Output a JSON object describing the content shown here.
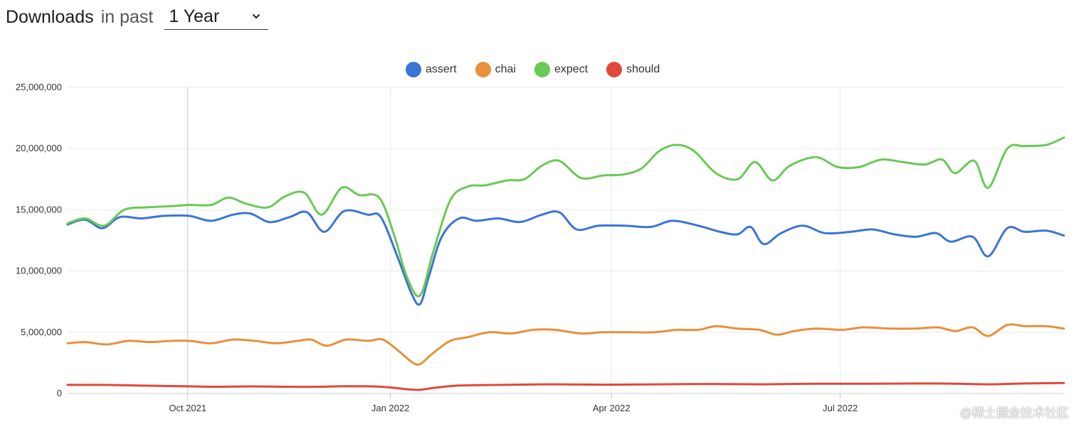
{
  "header": {
    "title_strong": "Downloads",
    "title_light": "in past",
    "period_select": {
      "value": "1 Year"
    }
  },
  "legend": [
    {
      "name": "assert",
      "color": "#3a75d5"
    },
    {
      "name": "chai",
      "color": "#e8903a"
    },
    {
      "name": "expect",
      "color": "#69c955"
    },
    {
      "name": "should",
      "color": "#e0483a"
    }
  ],
  "watermark": "@稀土掘金技术社区",
  "chart_data": {
    "type": "line",
    "title": "Downloads in past 1 Year",
    "xlabel": "",
    "ylabel": "",
    "x_range": [
      "Aug 2021",
      "Aug 2022"
    ],
    "x_ticks": [
      {
        "label": "Oct 2021",
        "t": 0.138
      },
      {
        "label": "Jan 2022",
        "t": 0.371
      },
      {
        "label": "Apr 2022",
        "t": 0.625
      },
      {
        "label": "Jul 2022",
        "t": 0.888
      }
    ],
    "ylim": [
      0,
      25000000
    ],
    "y_ticks": [
      {
        "label": "0",
        "value": 0
      },
      {
        "label": "5,000,000",
        "value": 5000000
      },
      {
        "label": "10,000,000",
        "value": 10000000
      },
      {
        "label": "15,000,000",
        "value": 15000000
      },
      {
        "label": "20,000,000",
        "value": 20000000
      },
      {
        "label": "25,000,000",
        "value": 25000000
      }
    ],
    "grid": true,
    "legend_position": "top-center",
    "series": [
      {
        "name": "assert",
        "color": "#3a75d5",
        "points": [
          [
            0.0,
            13.8
          ],
          [
            0.02,
            14.2
          ],
          [
            0.04,
            13.5
          ],
          [
            0.06,
            14.4
          ],
          [
            0.085,
            14.3
          ],
          [
            0.11,
            14.5
          ],
          [
            0.14,
            14.5
          ],
          [
            0.165,
            14.1
          ],
          [
            0.19,
            14.6
          ],
          [
            0.21,
            14.7
          ],
          [
            0.232,
            14.0
          ],
          [
            0.255,
            14.4
          ],
          [
            0.275,
            14.8
          ],
          [
            0.295,
            13.2
          ],
          [
            0.318,
            14.9
          ],
          [
            0.345,
            14.6
          ],
          [
            0.36,
            14.4
          ],
          [
            0.38,
            11.0
          ],
          [
            0.395,
            8.2
          ],
          [
            0.405,
            7.3
          ],
          [
            0.415,
            9.5
          ],
          [
            0.43,
            12.8
          ],
          [
            0.45,
            14.3
          ],
          [
            0.47,
            14.1
          ],
          [
            0.495,
            14.3
          ],
          [
            0.52,
            14.0
          ],
          [
            0.545,
            14.6
          ],
          [
            0.565,
            14.8
          ],
          [
            0.585,
            13.4
          ],
          [
            0.61,
            13.7
          ],
          [
            0.64,
            13.7
          ],
          [
            0.67,
            13.6
          ],
          [
            0.695,
            14.1
          ],
          [
            0.725,
            13.7
          ],
          [
            0.75,
            13.2
          ],
          [
            0.77,
            13.0
          ],
          [
            0.785,
            13.6
          ],
          [
            0.8,
            12.2
          ],
          [
            0.82,
            13.1
          ],
          [
            0.845,
            13.7
          ],
          [
            0.87,
            13.1
          ],
          [
            0.9,
            13.2
          ],
          [
            0.925,
            13.4
          ],
          [
            0.95,
            13.0
          ],
          [
            0.975,
            12.8
          ],
          [
            0.998,
            13.1
          ],
          [
            1.015,
            12.4
          ],
          [
            1.04,
            12.8
          ],
          [
            1.058,
            11.2
          ],
          [
            1.08,
            13.5
          ],
          [
            1.1,
            13.2
          ],
          [
            1.125,
            13.3
          ],
          [
            1.145,
            12.9
          ]
        ]
      },
      {
        "name": "chai",
        "color": "#e8903a",
        "points": [
          [
            0.0,
            4.1
          ],
          [
            0.02,
            4.2
          ],
          [
            0.045,
            4.0
          ],
          [
            0.07,
            4.3
          ],
          [
            0.095,
            4.2
          ],
          [
            0.12,
            4.3
          ],
          [
            0.14,
            4.3
          ],
          [
            0.165,
            4.1
          ],
          [
            0.19,
            4.4
          ],
          [
            0.215,
            4.3
          ],
          [
            0.24,
            4.1
          ],
          [
            0.265,
            4.3
          ],
          [
            0.28,
            4.4
          ],
          [
            0.298,
            3.9
          ],
          [
            0.32,
            4.4
          ],
          [
            0.345,
            4.3
          ],
          [
            0.362,
            4.4
          ],
          [
            0.38,
            3.5
          ],
          [
            0.395,
            2.6
          ],
          [
            0.405,
            2.4
          ],
          [
            0.42,
            3.3
          ],
          [
            0.44,
            4.3
          ],
          [
            0.46,
            4.6
          ],
          [
            0.485,
            5.0
          ],
          [
            0.51,
            4.9
          ],
          [
            0.535,
            5.2
          ],
          [
            0.56,
            5.2
          ],
          [
            0.59,
            4.9
          ],
          [
            0.615,
            5.0
          ],
          [
            0.645,
            5.0
          ],
          [
            0.675,
            5.0
          ],
          [
            0.7,
            5.2
          ],
          [
            0.725,
            5.2
          ],
          [
            0.745,
            5.5
          ],
          [
            0.77,
            5.3
          ],
          [
            0.795,
            5.2
          ],
          [
            0.815,
            4.8
          ],
          [
            0.835,
            5.1
          ],
          [
            0.86,
            5.3
          ],
          [
            0.89,
            5.2
          ],
          [
            0.915,
            5.4
          ],
          [
            0.945,
            5.3
          ],
          [
            0.975,
            5.3
          ],
          [
            1.0,
            5.4
          ],
          [
            1.02,
            5.1
          ],
          [
            1.04,
            5.4
          ],
          [
            1.058,
            4.7
          ],
          [
            1.08,
            5.6
          ],
          [
            1.1,
            5.5
          ],
          [
            1.125,
            5.5
          ],
          [
            1.145,
            5.3
          ]
        ]
      },
      {
        "name": "expect",
        "color": "#69c955",
        "points": [
          [
            0.0,
            13.9
          ],
          [
            0.02,
            14.3
          ],
          [
            0.042,
            13.7
          ],
          [
            0.065,
            15.0
          ],
          [
            0.09,
            15.2
          ],
          [
            0.12,
            15.3
          ],
          [
            0.14,
            15.4
          ],
          [
            0.165,
            15.4
          ],
          [
            0.185,
            16.0
          ],
          [
            0.205,
            15.5
          ],
          [
            0.23,
            15.2
          ],
          [
            0.25,
            16.1
          ],
          [
            0.272,
            16.4
          ],
          [
            0.292,
            14.6
          ],
          [
            0.315,
            16.8
          ],
          [
            0.335,
            16.2
          ],
          [
            0.358,
            16.0
          ],
          [
            0.375,
            13.0
          ],
          [
            0.39,
            9.5
          ],
          [
            0.405,
            8.0
          ],
          [
            0.42,
            11.5
          ],
          [
            0.44,
            15.8
          ],
          [
            0.46,
            16.9
          ],
          [
            0.48,
            17.0
          ],
          [
            0.505,
            17.4
          ],
          [
            0.525,
            17.5
          ],
          [
            0.545,
            18.6
          ],
          [
            0.565,
            19.0
          ],
          [
            0.59,
            17.6
          ],
          [
            0.615,
            17.8
          ],
          [
            0.64,
            17.9
          ],
          [
            0.66,
            18.4
          ],
          [
            0.68,
            19.8
          ],
          [
            0.7,
            20.3
          ],
          [
            0.72,
            19.8
          ],
          [
            0.745,
            18.0
          ],
          [
            0.77,
            17.5
          ],
          [
            0.79,
            18.9
          ],
          [
            0.81,
            17.4
          ],
          [
            0.83,
            18.6
          ],
          [
            0.86,
            19.3
          ],
          [
            0.885,
            18.5
          ],
          [
            0.91,
            18.5
          ],
          [
            0.935,
            19.1
          ],
          [
            0.96,
            18.9
          ],
          [
            0.985,
            18.7
          ],
          [
            1.005,
            19.1
          ],
          [
            1.02,
            18.0
          ],
          [
            1.042,
            19.0
          ],
          [
            1.058,
            16.8
          ],
          [
            1.08,
            20.0
          ],
          [
            1.1,
            20.2
          ],
          [
            1.125,
            20.3
          ],
          [
            1.145,
            20.9
          ]
        ]
      },
      {
        "name": "should",
        "color": "#e0483a",
        "points": [
          [
            0.0,
            0.7
          ],
          [
            0.04,
            0.7
          ],
          [
            0.08,
            0.65
          ],
          [
            0.13,
            0.6
          ],
          [
            0.17,
            0.55
          ],
          [
            0.21,
            0.58
          ],
          [
            0.25,
            0.55
          ],
          [
            0.29,
            0.55
          ],
          [
            0.32,
            0.6
          ],
          [
            0.36,
            0.55
          ],
          [
            0.39,
            0.35
          ],
          [
            0.405,
            0.3
          ],
          [
            0.42,
            0.45
          ],
          [
            0.45,
            0.65
          ],
          [
            0.5,
            0.7
          ],
          [
            0.56,
            0.75
          ],
          [
            0.62,
            0.72
          ],
          [
            0.68,
            0.75
          ],
          [
            0.74,
            0.78
          ],
          [
            0.8,
            0.75
          ],
          [
            0.86,
            0.8
          ],
          [
            0.92,
            0.8
          ],
          [
            0.98,
            0.82
          ],
          [
            1.02,
            0.8
          ],
          [
            1.06,
            0.75
          ],
          [
            1.1,
            0.82
          ],
          [
            1.145,
            0.85
          ]
        ]
      }
    ],
    "value_unit_note": "y values in series points are in millions of downloads"
  }
}
